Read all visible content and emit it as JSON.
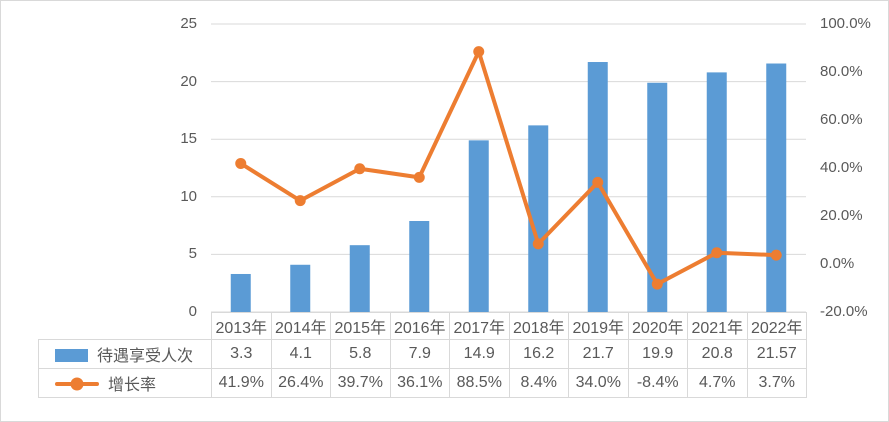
{
  "chart_data": {
    "type": "bar+line",
    "categories": [
      "2013年",
      "2014年",
      "2015年",
      "2016年",
      "2017年",
      "2018年",
      "2019年",
      "2020年",
      "2021年",
      "2022年"
    ],
    "series": [
      {
        "name": "待遇享受人次",
        "type": "bar",
        "axis": "left",
        "color": "#5B9BD5",
        "values": [
          3.3,
          4.1,
          5.8,
          7.9,
          14.9,
          16.2,
          21.7,
          19.9,
          20.8,
          21.57
        ],
        "labels": [
          "3.3",
          "4.1",
          "5.8",
          "7.9",
          "14.9",
          "16.2",
          "21.7",
          "19.9",
          "20.8",
          "21.57"
        ]
      },
      {
        "name": "增长率",
        "type": "line",
        "axis": "right",
        "color": "#ED7D31",
        "values": [
          41.9,
          26.4,
          39.7,
          36.1,
          88.5,
          8.4,
          34.0,
          -8.4,
          4.7,
          3.7
        ],
        "labels": [
          "41.9%",
          "26.4%",
          "39.7%",
          "36.1%",
          "88.5%",
          "8.4%",
          "34.0%",
          "-8.4%",
          "4.7%",
          "3.7%"
        ]
      }
    ],
    "left_axis": {
      "min": 0,
      "max": 25,
      "tick_values": [
        0,
        5,
        10,
        15,
        20,
        25
      ],
      "tick_labels": [
        "0",
        "5",
        "10",
        "15",
        "20",
        "25"
      ]
    },
    "right_axis": {
      "min": -20,
      "max": 100,
      "tick_values": [
        -20,
        0,
        20,
        40,
        60,
        80,
        100
      ],
      "tick_labels": [
        "-20.0%",
        "0.0%",
        "20.0%",
        "40.0%",
        "60.0%",
        "80.0%",
        "100.0%"
      ]
    },
    "grid": true,
    "legend_position": "data-table-left"
  },
  "colors": {
    "bar": "#5B9BD5",
    "line": "#ED7D31",
    "grid": "#D9D9D9",
    "table_border": "#D9D9D9",
    "text": "#595959",
    "frame_border": "#D9D9D9",
    "background": "#FFFFFF"
  }
}
